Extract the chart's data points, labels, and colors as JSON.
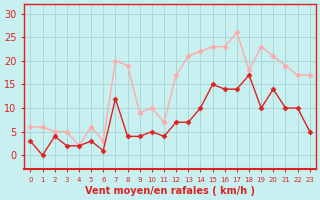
{
  "x": [
    0,
    1,
    2,
    3,
    4,
    5,
    6,
    7,
    8,
    9,
    10,
    11,
    12,
    13,
    14,
    15,
    16,
    17,
    18,
    19,
    20,
    21,
    22,
    23
  ],
  "avg_wind": [
    3,
    0,
    4,
    2,
    2,
    3,
    1,
    12,
    4,
    4,
    5,
    4,
    7,
    7,
    10,
    15,
    14,
    14,
    17,
    10,
    14,
    10,
    10,
    5
  ],
  "gust_wind": [
    6,
    6,
    5,
    5,
    2,
    6,
    3,
    20,
    19,
    9,
    10,
    7,
    17,
    21,
    22,
    23,
    23,
    26,
    18,
    23,
    21,
    19,
    17,
    17
  ],
  "avg_color": "#dd2222",
  "gust_color": "#ffaaaa",
  "bg_color": "#c8f0f0",
  "grid_color": "#a8d8d8",
  "xlabel": "Vent moyen/en rafales ( km/h )",
  "xlabel_color": "#dd2222",
  "ylabel_ticks": [
    0,
    5,
    10,
    15,
    20,
    25,
    30
  ],
  "ylim": [
    -3,
    32
  ],
  "xlim": [
    -0.5,
    23.5
  ],
  "tick_color": "#dd2222",
  "axis_color": "#dd2222"
}
